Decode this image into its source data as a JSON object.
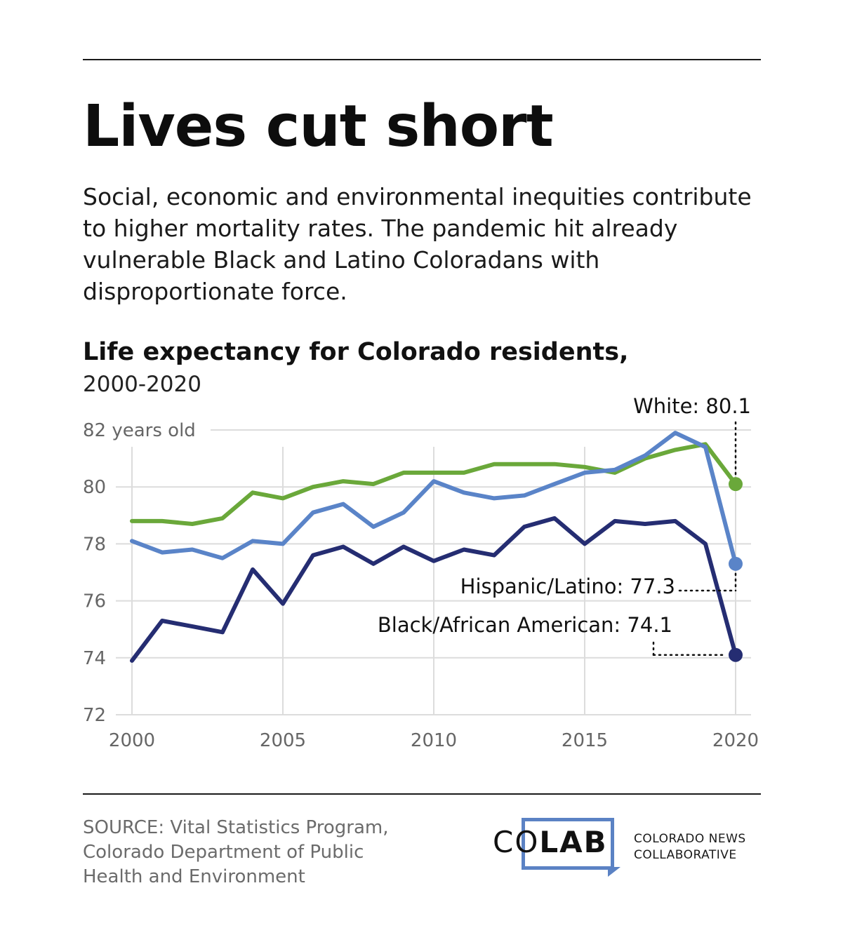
{
  "header": {
    "title": "Lives cut short",
    "subtitle": "Social, economic and environmental inequities contribute to higher mortality rates. The pandemic hit already vulnerable Black and Latino Coloradans with disproportionate force."
  },
  "chart_data": {
    "type": "line",
    "title": "Life expectancy for Colorado residents,",
    "subtitle": "2000-2020",
    "x": [
      2000,
      2001,
      2002,
      2003,
      2004,
      2005,
      2006,
      2007,
      2008,
      2009,
      2010,
      2011,
      2012,
      2013,
      2014,
      2015,
      2016,
      2017,
      2018,
      2019,
      2020
    ],
    "xticks": [
      2000,
      2005,
      2010,
      2015,
      2020
    ],
    "xlim": [
      2000,
      2020
    ],
    "yticks": [
      72,
      74,
      76,
      78,
      80,
      82
    ],
    "ylim": [
      72,
      82
    ],
    "ytick_labels": [
      "72",
      "74",
      "76",
      "78",
      "80",
      "82 years old"
    ],
    "grid": true,
    "series": [
      {
        "key": "white",
        "color": "#6aa83a",
        "values": [
          78.8,
          78.8,
          78.7,
          78.9,
          79.8,
          79.6,
          80.0,
          80.2,
          80.1,
          80.5,
          80.5,
          80.5,
          80.8,
          80.8,
          80.8,
          80.7,
          80.5,
          81.0,
          81.3,
          81.5,
          80.1
        ]
      },
      {
        "key": "hispanic",
        "color": "#5a84c8",
        "values": [
          78.1,
          77.7,
          77.8,
          77.5,
          78.1,
          78.0,
          79.1,
          79.4,
          78.6,
          79.1,
          80.2,
          79.8,
          79.6,
          79.7,
          80.1,
          80.5,
          80.6,
          81.1,
          81.9,
          81.4,
          77.3
        ]
      },
      {
        "key": "black",
        "color": "#252d72",
        "values": [
          73.9,
          75.3,
          75.1,
          74.9,
          77.1,
          75.9,
          77.6,
          77.9,
          77.3,
          77.9,
          77.4,
          77.8,
          77.6,
          78.6,
          78.9,
          78.0,
          78.8,
          78.7,
          78.8,
          78.0,
          74.1
        ]
      }
    ],
    "annotations": {
      "white": "White: 80.1",
      "hispanic": "Hispanic/Latino: 77.3",
      "black": "Black/African American: 74.1"
    }
  },
  "source": {
    "line1": "SOURCE: Vital Statistics Program,",
    "line2": "Colorado Department of Public",
    "line3": "Health and Environment"
  },
  "logo": {
    "part1": "CO",
    "part2": "LAB",
    "org_line1": "COLORADO NEWS",
    "org_line2": "COLLABORATIVE",
    "color": "#5b82c4"
  }
}
